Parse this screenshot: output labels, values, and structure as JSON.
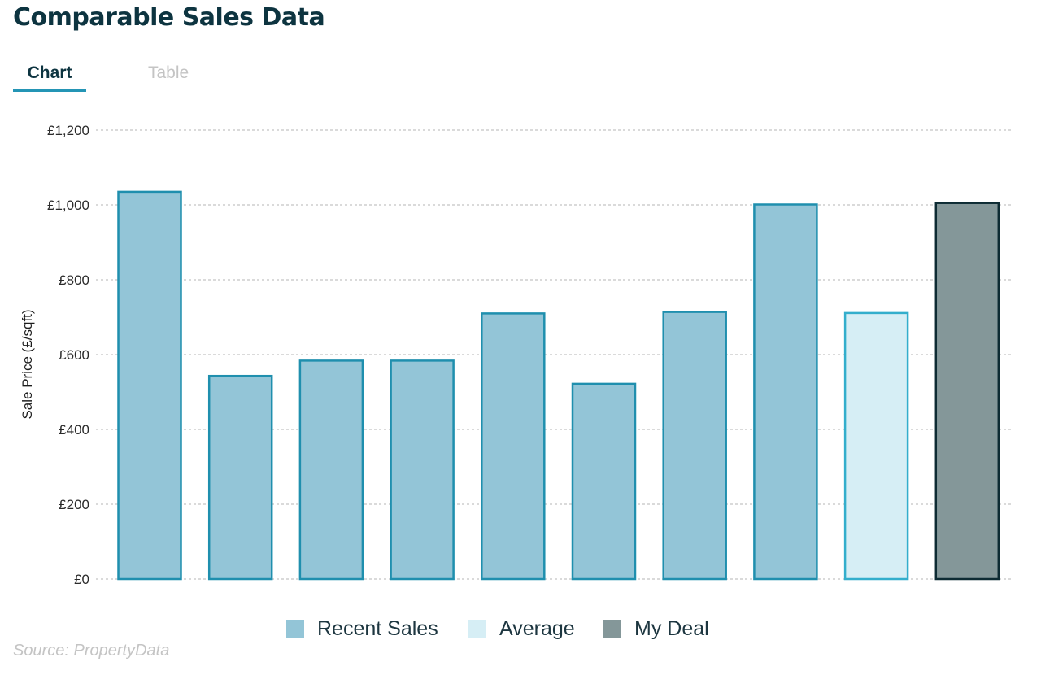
{
  "page": {
    "title": "Comparable Sales Data",
    "source": "Source: PropertyData"
  },
  "tabs": [
    {
      "label": "Chart",
      "active": true
    },
    {
      "label": "Table",
      "active": false
    }
  ],
  "colors": {
    "title": "#0d3440",
    "tab_active_underline": "#2495b5",
    "recent_fill": "#93c5d7",
    "recent_stroke": "#1f8fae",
    "average_fill": "#d6eef5",
    "average_stroke": "#33aecc",
    "mydeal_fill": "#849799",
    "mydeal_stroke": "#0d2b33",
    "grid": "#b5b5b5"
  },
  "chart_data": {
    "type": "bar",
    "ylabel": "Sale Price (£/sqft)",
    "xlabel": "",
    "ylim": [
      0,
      1200
    ],
    "yticks": [
      0,
      200,
      400,
      600,
      800,
      1000,
      1200
    ],
    "ytick_labels": [
      "£0",
      "£200",
      "£400",
      "£600",
      "£800",
      "£1,000",
      "£1,200"
    ],
    "grid": true,
    "grid_style": "dotted horizontal",
    "legend_position": "bottom",
    "bars": [
      {
        "value": 1035,
        "group": "recent"
      },
      {
        "value": 543,
        "group": "recent"
      },
      {
        "value": 584,
        "group": "recent"
      },
      {
        "value": 584,
        "group": "recent"
      },
      {
        "value": 710,
        "group": "recent"
      },
      {
        "value": 522,
        "group": "recent"
      },
      {
        "value": 714,
        "group": "recent"
      },
      {
        "value": 1001,
        "group": "recent"
      },
      {
        "value": 711,
        "group": "average"
      },
      {
        "value": 1005,
        "group": "mydeal"
      }
    ],
    "legend": [
      {
        "key": "recent",
        "label": "Recent Sales"
      },
      {
        "key": "average",
        "label": "Average"
      },
      {
        "key": "mydeal",
        "label": "My Deal"
      }
    ]
  }
}
